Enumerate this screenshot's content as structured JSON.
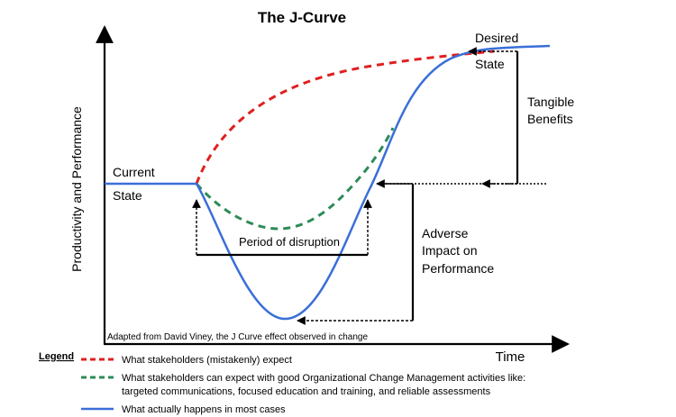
{
  "title": "The J-Curve",
  "y_axis_label": "Productivity and Performance",
  "x_axis_label": "Time",
  "labels": {
    "current_state_line1": "Current",
    "current_state_line2": "State",
    "desired_state_line1": "Desired",
    "desired_state_line2": "State",
    "tangible_benefits_line1": "Tangible",
    "tangible_benefits_line2": "Benefits",
    "adverse_line1": "Adverse",
    "adverse_line2": "Impact on",
    "adverse_line3": "Performance",
    "period_of_disruption": "Period of disruption"
  },
  "source_note": "Adapted from David Viney, the J Curve effect observed in change",
  "legend": {
    "title": "Legend",
    "items": [
      {
        "text": "What stakeholders (mistakenly) expect",
        "color": "#e02020",
        "style": "dashed"
      },
      {
        "text": "What stakeholders can expect with good Organizational Change Management activities like:",
        "text2": "targeted communications, focused education and training, and reliable assessments",
        "color": "#2e8b57",
        "style": "dashed"
      },
      {
        "text": "What actually happens in most cases",
        "color": "#3a6fd8",
        "style": "solid"
      }
    ]
  },
  "colors": {
    "expected": "#e02020",
    "ocm": "#2e8b57",
    "actual": "#3a6fd8",
    "axis": "#000000"
  }
}
